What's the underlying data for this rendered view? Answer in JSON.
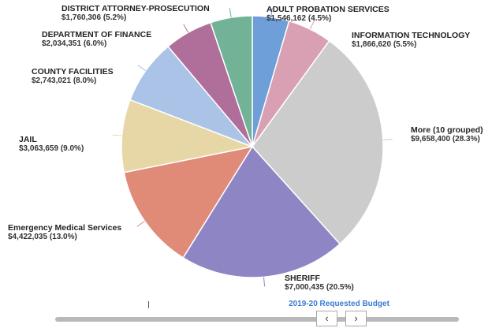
{
  "chart_data": {
    "type": "pie",
    "title": "",
    "subtitle": "2019-20 Requested Budget",
    "slices": [
      {
        "label": "ADULT PROBATION SERVICES",
        "value_text": "$1,546,162 (4.5%)",
        "value": 1546162,
        "percent": 4.5,
        "color": "#6f9fd8"
      },
      {
        "label": "INFORMATION TECHNOLOGY",
        "value_text": "$1,866,620 (5.5%)",
        "value": 1866620,
        "percent": 5.5,
        "color": "#d8a0b2"
      },
      {
        "label": "More (10 grouped)",
        "value_text": "$9,658,400 (28.3%)",
        "value": 9658400,
        "percent": 28.3,
        "color": "#cccccc"
      },
      {
        "label": "SHERIFF",
        "value_text": "$7,000,435 (20.5%)",
        "value": 7000435,
        "percent": 20.5,
        "color": "#8e86c4"
      },
      {
        "label": "Emergency Medical Services",
        "value_text": "$4,422,035 (13.0%)",
        "value": 4422035,
        "percent": 13.0,
        "color": "#e08a78"
      },
      {
        "label": "JAIL",
        "value_text": "$3,063,659 (9.0%)",
        "value": 3063659,
        "percent": 9.0,
        "color": "#e8d7a6"
      },
      {
        "label": "COUNTY FACILITIES",
        "value_text": "$2,743,021 (8.0%)",
        "value": 2743021,
        "percent": 8.0,
        "color": "#aac3e6"
      },
      {
        "label": "DEPARTMENT OF FINANCE",
        "value_text": "$2,034,351 (6.0%)",
        "value": 2034351,
        "percent": 6.0,
        "color": "#b06e9a"
      },
      {
        "label": "DISTRICT ATTORNEY-PROSECUTION",
        "value_text": "$1,760,306 (5.2%)",
        "value": 1760306,
        "percent": 5.2,
        "color": "#72b296"
      }
    ]
  },
  "scrollbar": {
    "left_label": "‹",
    "right_label": "›"
  }
}
